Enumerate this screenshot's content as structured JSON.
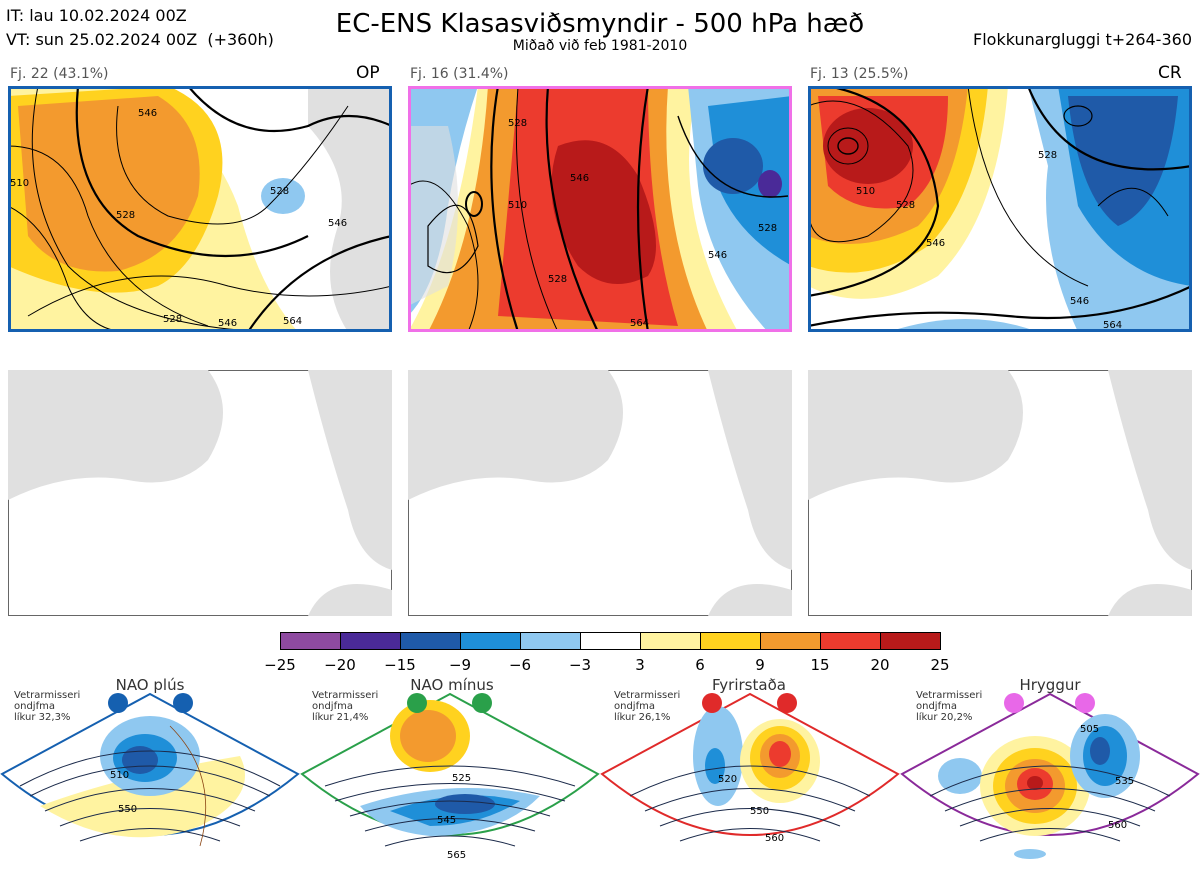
{
  "header": {
    "init_time": "IT: lau 10.02.2024 00Z",
    "valid_time": "VT: sun 25.02.2024 00Z  (+360h)",
    "title": "EC-ENS Klasasviðsmyndir - 500 hPa hæð",
    "subtitle": "Miðað við feb 1981-2010",
    "window": "Flokkunargluggi t+264-360"
  },
  "clusters": [
    {
      "label": "Fj. 22 (43.1%)",
      "tag": "OP",
      "frame_color": "#1560b0",
      "contour_labels": [
        "546",
        "528",
        "510",
        "528",
        "546",
        "528",
        "546",
        "564"
      ]
    },
    {
      "label": "Fj. 16 (31.4%)",
      "tag": "",
      "frame_color": "#f070e8",
      "contour_labels": [
        "528",
        "546",
        "510",
        "528",
        "546",
        "528",
        "564"
      ]
    },
    {
      "label": "Fj. 13 (25.5%)",
      "tag": "CR",
      "frame_color": "#1560b0",
      "contour_labels": [
        "510",
        "528",
        "546",
        "528",
        "546",
        "564"
      ]
    }
  ],
  "colorbar": {
    "ticks": [
      "−25",
      "−20",
      "−15",
      "−9",
      "−6",
      "−3",
      "3",
      "6",
      "9",
      "15",
      "20",
      "25"
    ],
    "colors": [
      "#8e4aa0",
      "#4a2a98",
      "#1f5aa8",
      "#1f8fd8",
      "#8fc8f0",
      "#ffffff",
      "#fff3a0",
      "#ffd21f",
      "#f39a2e",
      "#ec3b2e",
      "#b81a1a"
    ]
  },
  "regimes": [
    {
      "name": "NAO plús",
      "note": "Vetrarmisseri\nondjfma\nlíkur 32,3%",
      "frame_color": "#1560b0",
      "dot_color": "#1560b0",
      "labels": [
        "510",
        "550"
      ]
    },
    {
      "name": "NAO mínus",
      "note": "Vetrarmisseri\nondjfma\nlíkur 21,4%",
      "frame_color": "#2aa04a",
      "dot_color": "#2aa04a",
      "labels": [
        "525",
        "545",
        "565"
      ]
    },
    {
      "name": "Fyrirstaða",
      "note": "Vetrarmisseri\nondjfma\nlíkur 26,1%",
      "frame_color": "#e02a2a",
      "dot_color": "#e02a2a",
      "labels": [
        "520",
        "550",
        "560"
      ]
    },
    {
      "name": "Hryggur",
      "note": "Vetrarmisseri\nondjfma\nlíkur 20,2%",
      "frame_color": "#8a2a9a",
      "dot_color": "#e868e8",
      "labels": [
        "505",
        "535",
        "560"
      ]
    }
  ]
}
